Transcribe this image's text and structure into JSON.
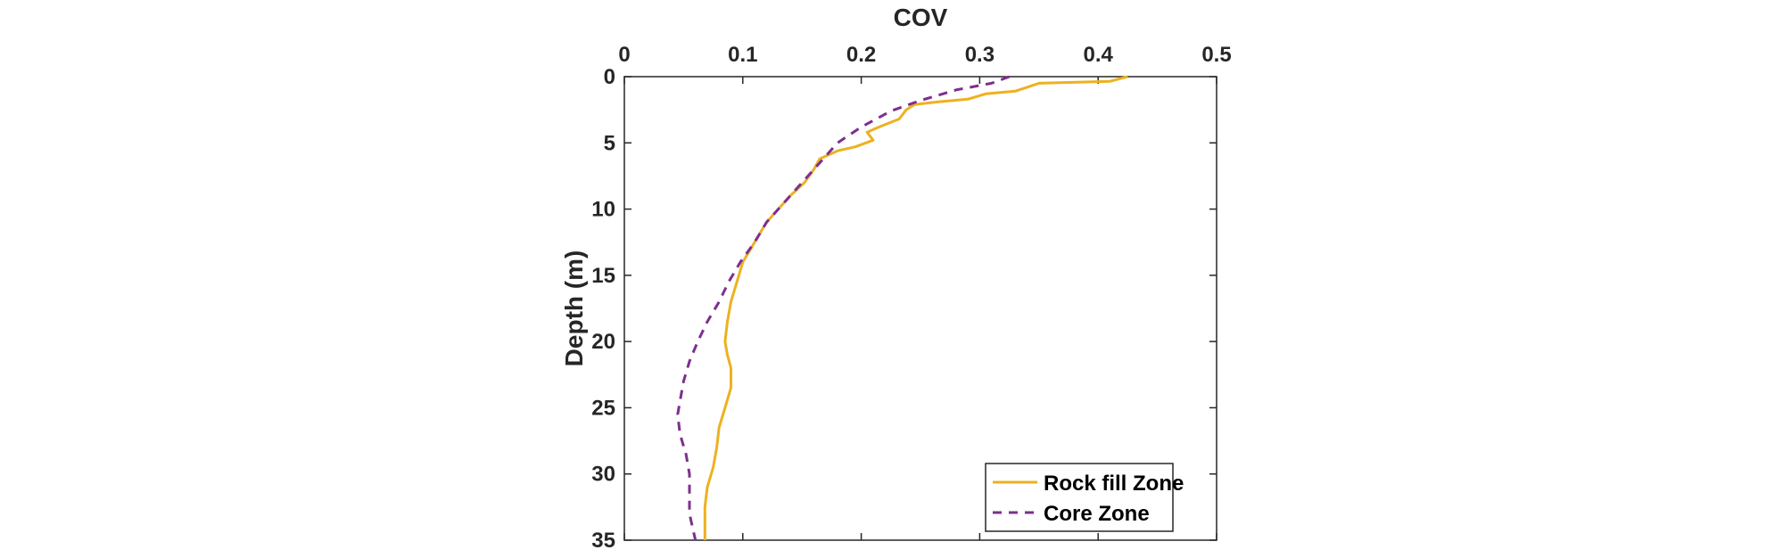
{
  "chart_data": {
    "type": "line",
    "title": "",
    "xlabel": "COV",
    "ylabel": "Depth (m)",
    "x_axis_position": "top",
    "y_axis_reversed": true,
    "xlim": [
      0,
      0.5
    ],
    "ylim": [
      0,
      35
    ],
    "xticks": [
      0,
      0.1,
      0.2,
      0.3,
      0.4,
      0.5
    ],
    "xtick_labels": [
      "0",
      "0.1",
      "0.2",
      "0.3",
      "0.4",
      "0.5"
    ],
    "yticks": [
      0,
      5,
      10,
      15,
      20,
      25,
      30,
      35
    ],
    "ytick_labels": [
      "0",
      "5",
      "10",
      "15",
      "20",
      "25",
      "30",
      "35"
    ],
    "grid": false,
    "legend_position": "bottom-right",
    "series": [
      {
        "name": "Rock fill Zone",
        "color": "#EDB120",
        "line_style": "solid",
        "points": [
          [
            0.425,
            0.0
          ],
          [
            0.41,
            0.35
          ],
          [
            0.35,
            0.5
          ],
          [
            0.34,
            0.8
          ],
          [
            0.33,
            1.1
          ],
          [
            0.305,
            1.3
          ],
          [
            0.29,
            1.7
          ],
          [
            0.265,
            1.9
          ],
          [
            0.245,
            2.1
          ],
          [
            0.238,
            2.5
          ],
          [
            0.232,
            3.2
          ],
          [
            0.215,
            3.8
          ],
          [
            0.205,
            4.2
          ],
          [
            0.21,
            4.8
          ],
          [
            0.195,
            5.3
          ],
          [
            0.18,
            5.6
          ],
          [
            0.165,
            6.2
          ],
          [
            0.16,
            7.0
          ],
          [
            0.152,
            8.0
          ],
          [
            0.14,
            9.0
          ],
          [
            0.13,
            10.0
          ],
          [
            0.12,
            11.0
          ],
          [
            0.11,
            12.5
          ],
          [
            0.1,
            14.0
          ],
          [
            0.095,
            15.5
          ],
          [
            0.09,
            17.0
          ],
          [
            0.087,
            18.5
          ],
          [
            0.085,
            20.0
          ],
          [
            0.087,
            21.0
          ],
          [
            0.09,
            22.0
          ],
          [
            0.09,
            23.5
          ],
          [
            0.085,
            25.0
          ],
          [
            0.08,
            26.5
          ],
          [
            0.078,
            28.0
          ],
          [
            0.075,
            29.5
          ],
          [
            0.07,
            31.0
          ],
          [
            0.068,
            32.5
          ],
          [
            0.068,
            34.0
          ],
          [
            0.068,
            35.0
          ]
        ]
      },
      {
        "name": "Core Zone",
        "color": "#7E2F8E",
        "line_style": "dashed",
        "points": [
          [
            0.325,
            0.0
          ],
          [
            0.31,
            0.5
          ],
          [
            0.28,
            1.0
          ],
          [
            0.25,
            1.8
          ],
          [
            0.225,
            2.6
          ],
          [
            0.2,
            3.8
          ],
          [
            0.18,
            5.0
          ],
          [
            0.165,
            6.5
          ],
          [
            0.15,
            8.0
          ],
          [
            0.135,
            9.5
          ],
          [
            0.12,
            11.0
          ],
          [
            0.11,
            12.5
          ],
          [
            0.098,
            14.0
          ],
          [
            0.088,
            15.5
          ],
          [
            0.08,
            17.0
          ],
          [
            0.07,
            18.5
          ],
          [
            0.062,
            20.0
          ],
          [
            0.055,
            21.5
          ],
          [
            0.05,
            23.0
          ],
          [
            0.047,
            24.5
          ],
          [
            0.045,
            25.5
          ],
          [
            0.047,
            27.0
          ],
          [
            0.052,
            28.5
          ],
          [
            0.055,
            30.0
          ],
          [
            0.055,
            31.5
          ],
          [
            0.055,
            33.0
          ],
          [
            0.058,
            34.2
          ],
          [
            0.06,
            35.0
          ]
        ]
      }
    ]
  }
}
